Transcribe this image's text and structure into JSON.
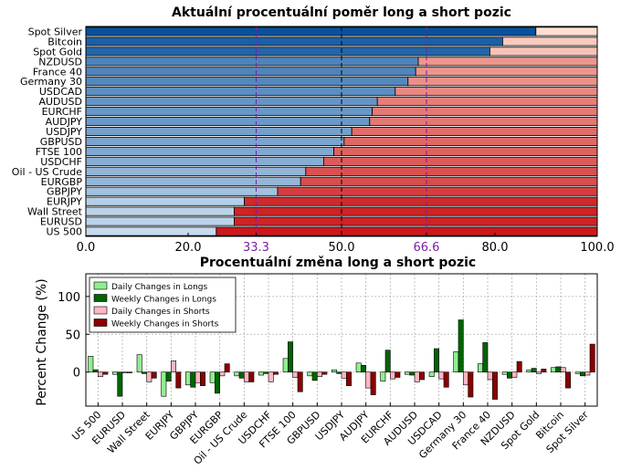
{
  "chart_data": [
    {
      "type": "bar",
      "orientation": "horizontal",
      "stacked": true,
      "title": "Aktuální procentuální poměr long a short pozic",
      "categories": [
        "Spot Silver",
        "Bitcoin",
        "Spot Gold",
        "NZDUSD",
        "France 40",
        "Germany 30",
        "USDCAD",
        "AUDUSD",
        "EURCHF",
        "AUDJPY",
        "USDJPY",
        "GBPUSD",
        "FTSE 100",
        "USDCHF",
        "Oil - US Crude",
        "EURGBP",
        "GBPJPY",
        "EURJPY",
        "Wall Street",
        "EURUSD",
        "US 500"
      ],
      "long_pct": [
        88,
        81.5,
        79,
        65,
        64.5,
        63,
        60.5,
        57,
        56,
        55.5,
        52,
        50.5,
        48.5,
        46.5,
        43,
        42,
        37.5,
        31,
        29,
        29,
        25.5
      ],
      "xlim": [
        0,
        100
      ],
      "xticks": [
        "0.0",
        "20.0",
        "33.3",
        "50.0",
        "66.6",
        "80.0",
        "100.0"
      ],
      "reference_lines": [
        33.3,
        50,
        66.6
      ],
      "colors": {
        "long_dark": "#08519c",
        "long_light": "#c6dbef",
        "short_dark": "#cb181d",
        "short_light": "#fee0d2",
        "ref_purple": "#7b1fa2"
      }
    },
    {
      "type": "bar",
      "title": "Procentuální změna long a short pozic",
      "ylabel": "Percent Change (%)",
      "ylim": [
        -45,
        130
      ],
      "yticks": [
        "0",
        "50",
        "100"
      ],
      "grid": true,
      "legend_position": "top-left",
      "categories": [
        "US 500",
        "EURUSD",
        "Wall Street",
        "EURJPY",
        "GBPJPY",
        "EURGBP",
        "Oil - US Crude",
        "USDCHF",
        "FTSE 100",
        "GBPUSD",
        "USDJPY",
        "AUDJPY",
        "EURCHF",
        "AUDUSD",
        "USDCAD",
        "Germany 30",
        "France 40",
        "NZDUSD",
        "Spot Gold",
        "Bitcoin",
        "Spot Silver"
      ],
      "series": [
        {
          "name": "Daily Changes in Longs",
          "color": "#90ee90",
          "values": [
            21,
            -3,
            23,
            -32,
            -17,
            -14,
            -5,
            -4,
            18,
            -5,
            3,
            12,
            -12,
            -3,
            -6,
            27,
            11,
            -3,
            3,
            6,
            -2
          ]
        },
        {
          "name": "Weekly Changes in Longs",
          "color": "#006400",
          "values": [
            3,
            -32,
            -2,
            -12,
            -20,
            -28,
            -8,
            -2,
            40,
            -11,
            -2,
            9,
            29,
            -4,
            31,
            69,
            39,
            -8,
            5,
            7,
            -5
          ]
        },
        {
          "name": "Daily Changes in Shorts",
          "color": "#ffb6c1",
          "values": [
            -6,
            -1,
            -13,
            15,
            -14,
            -5,
            -13,
            -13,
            -7,
            -6,
            -8,
            -21,
            -9,
            -13,
            -9,
            -17,
            -10,
            -7,
            -2,
            6,
            -4
          ]
        },
        {
          "name": "Weekly Changes in Shorts",
          "color": "#8b0000",
          "values": [
            -3,
            -1,
            -8,
            -21,
            -18,
            11,
            -13,
            -3,
            -26,
            -3,
            -18,
            -30,
            -7,
            -10,
            -20,
            -33,
            -36,
            14,
            4,
            -21,
            37
          ]
        }
      ]
    }
  ]
}
